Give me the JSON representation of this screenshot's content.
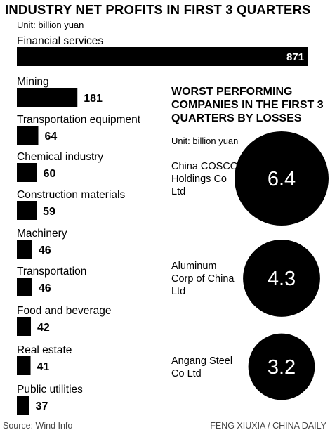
{
  "chart_data": [
    {
      "type": "bar",
      "title": "INDUSTRY NET PROFITS IN FIRST 3 QUARTERS",
      "unit": "Unit: billion yuan",
      "categories": [
        "Financial services",
        "Mining",
        "Transportation equipment",
        "Chemical industry",
        "Construction materials",
        "Machinery",
        "Transportation",
        "Food and beverage",
        "Real estate",
        "Public utilities"
      ],
      "values": [
        871,
        181,
        64,
        60,
        59,
        46,
        46,
        42,
        41,
        37
      ],
      "orientation": "horizontal"
    },
    {
      "type": "bubble",
      "title": "WORST PERFORMING COMPANIES IN THE FIRST 3 QUARTERS BY LOSSES",
      "unit": "Unit: billion yuan",
      "companies": [
        {
          "name": "China COSCO Holdings Co Ltd",
          "lines": [
            "China COSCO",
            "Holdings Co",
            "Ltd"
          ],
          "value": 6.4
        },
        {
          "name": "Aluminum Corp of China Ltd",
          "lines": [
            "Aluminum",
            "Corp of China",
            "Ltd"
          ],
          "value": 4.3
        },
        {
          "name": "Angang Steel Co Ltd",
          "lines": [
            "Angang Steel",
            "Co Ltd"
          ],
          "value": 3.2
        }
      ]
    }
  ],
  "footer": {
    "source": "Source: Wind Info",
    "credit": "FENG XIUXIA / CHINA DAILY"
  },
  "colors": {
    "bar": "#000000",
    "bubble": "#000000",
    "text": "#000000",
    "footer_text": "#444444"
  }
}
